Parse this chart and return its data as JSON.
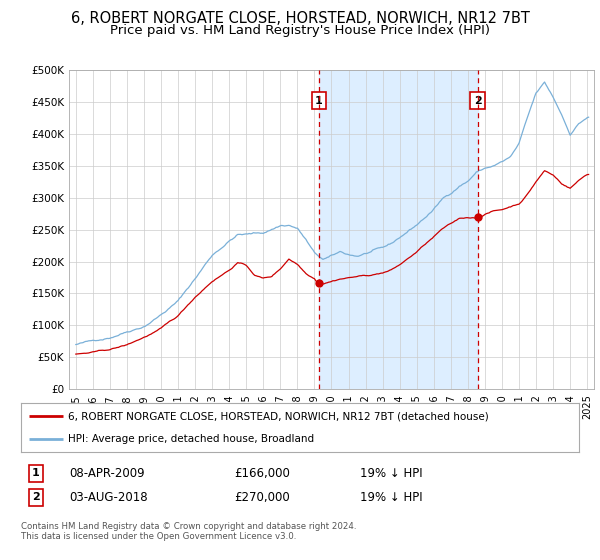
{
  "title": "6, ROBERT NORGATE CLOSE, HORSTEAD, NORWICH, NR12 7BT",
  "subtitle": "Price paid vs. HM Land Registry's House Price Index (HPI)",
  "ylim": [
    0,
    500000
  ],
  "yticks": [
    0,
    50000,
    100000,
    150000,
    200000,
    250000,
    300000,
    350000,
    400000,
    450000,
    500000
  ],
  "ytick_labels": [
    "£0",
    "£50K",
    "£100K",
    "£150K",
    "£200K",
    "£250K",
    "£300K",
    "£350K",
    "£400K",
    "£450K",
    "£500K"
  ],
  "legend_line1": "6, ROBERT NORGATE CLOSE, HORSTEAD, NORWICH, NR12 7BT (detached house)",
  "legend_line2": "HPI: Average price, detached house, Broadland",
  "annotation1_label": "1",
  "annotation1_date": "08-APR-2009",
  "annotation1_price": "£166,000",
  "annotation1_hpi": "19% ↓ HPI",
  "annotation2_label": "2",
  "annotation2_date": "03-AUG-2018",
  "annotation2_price": "£270,000",
  "annotation2_hpi": "19% ↓ HPI",
  "footer": "Contains HM Land Registry data © Crown copyright and database right 2024.\nThis data is licensed under the Open Government Licence v3.0.",
  "sale1_year": 2009.27,
  "sale1_value": 166000,
  "sale2_year": 2018.58,
  "sale2_value": 270000,
  "background_color": "#ffffff",
  "shaded_region_color": "#ddeeff",
  "hpi_line_color": "#7ab0d8",
  "price_line_color": "#cc0000",
  "dashed_line_color": "#cc0000",
  "grid_color": "#cccccc",
  "title_fontsize": 10.5,
  "subtitle_fontsize": 9.5
}
